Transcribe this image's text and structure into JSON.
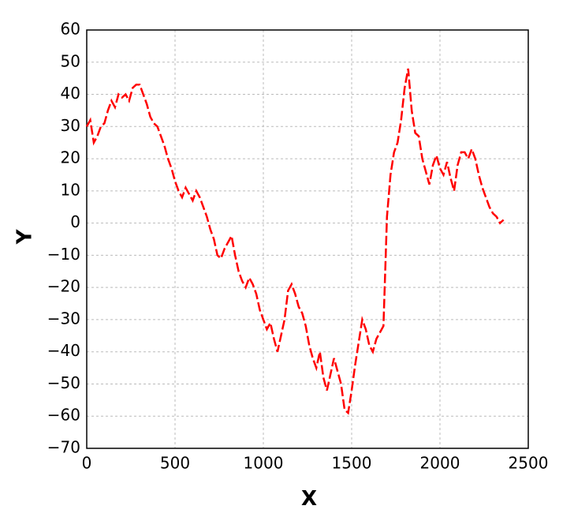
{
  "chart_data": {
    "type": "line",
    "x_label": "X",
    "y_label": "Y",
    "color": "#ff0000",
    "grid": true,
    "x": [
      0,
      20,
      40,
      60,
      80,
      100,
      120,
      140,
      160,
      180,
      200,
      220,
      240,
      260,
      280,
      300,
      320,
      340,
      360,
      380,
      400,
      420,
      440,
      460,
      480,
      500,
      520,
      540,
      560,
      580,
      600,
      620,
      640,
      660,
      680,
      700,
      720,
      740,
      760,
      780,
      800,
      820,
      840,
      860,
      880,
      900,
      920,
      940,
      960,
      980,
      1000,
      1020,
      1040,
      1060,
      1080,
      1100,
      1120,
      1140,
      1160,
      1180,
      1200,
      1220,
      1240,
      1260,
      1280,
      1300,
      1320,
      1340,
      1360,
      1380,
      1400,
      1420,
      1440,
      1460,
      1480,
      1500,
      1520,
      1540,
      1560,
      1580,
      1600,
      1620,
      1640,
      1660,
      1680,
      1690,
      1700,
      1720,
      1740,
      1760,
      1780,
      1800,
      1820,
      1840,
      1860,
      1880,
      1900,
      1920,
      1940,
      1960,
      1980,
      2000,
      2020,
      2040,
      2060,
      2080,
      2100,
      2120,
      2140,
      2160,
      2180,
      2200,
      2220,
      2240,
      2260,
      2280,
      2300,
      2320,
      2340,
      2360
    ],
    "values": [
      30,
      32,
      25,
      27,
      30,
      31,
      35,
      38,
      36,
      40,
      39,
      40,
      38,
      42,
      43,
      43,
      40,
      37,
      33,
      31,
      30,
      27,
      24,
      20,
      17,
      13,
      10,
      8,
      11,
      9,
      7,
      10,
      8,
      5,
      2,
      -2,
      -5,
      -10,
      -11,
      -8,
      -6,
      -4,
      -10,
      -15,
      -18,
      -20,
      -17,
      -19,
      -22,
      -27,
      -30,
      -33,
      -31,
      -36,
      -40,
      -35,
      -30,
      -21,
      -19,
      -22,
      -26,
      -28,
      -32,
      -38,
      -42,
      -45,
      -40,
      -48,
      -52,
      -47,
      -42,
      -46,
      -50,
      -58,
      -59,
      -52,
      -44,
      -37,
      -30,
      -33,
      -38,
      -40,
      -36,
      -34,
      -32,
      -15,
      2,
      15,
      22,
      25,
      32,
      42,
      48,
      35,
      28,
      27,
      20,
      16,
      12,
      18,
      21,
      17,
      15,
      19,
      14,
      10,
      18,
      22,
      22,
      20,
      23,
      20,
      15,
      11,
      8,
      5,
      3,
      2,
      0,
      1
    ],
    "xlim": [
      0,
      2500
    ],
    "xticks": [
      0,
      500,
      1000,
      1500,
      2000,
      2500
    ],
    "ylim": [
      -70,
      60
    ],
    "yticks": [
      {
        "value": -70,
        "label": "−70"
      },
      {
        "value": -60,
        "label": "−60"
      },
      {
        "value": -50,
        "label": "−50"
      },
      {
        "value": -40,
        "label": "−40"
      },
      {
        "value": -30,
        "label": "−30"
      },
      {
        "value": -20,
        "label": "−20"
      },
      {
        "value": -10,
        "label": "−10"
      },
      0,
      10,
      20,
      30,
      40,
      50,
      60
    ]
  }
}
